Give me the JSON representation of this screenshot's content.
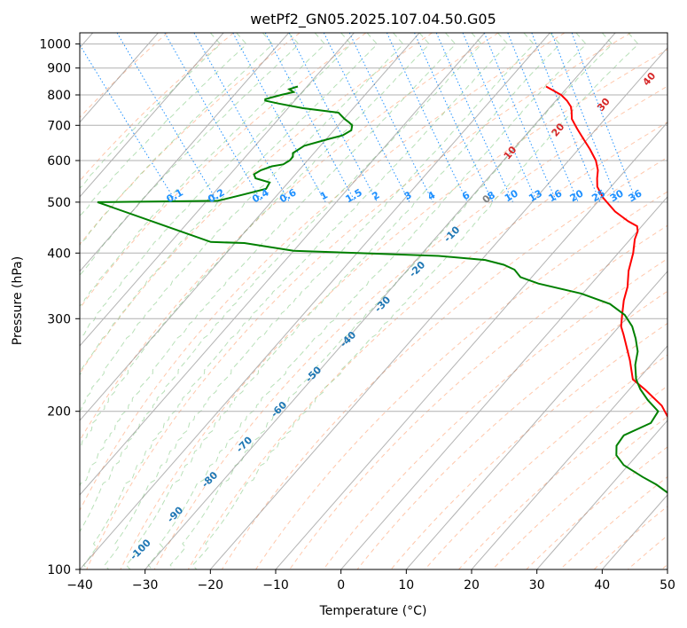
{
  "chart_data": {
    "type": "line",
    "subtype": "skew-t log-p diagram",
    "title": "wetPf2_GN05.2025.107.04.50.G05",
    "xlabel": "Temperature (°C)",
    "ylabel": "Pressure (hPa)",
    "xlim": [
      -40,
      50
    ],
    "ylim": [
      1050,
      100
    ],
    "y_scale": "log",
    "x_ticks": [
      -40,
      -30,
      -20,
      -10,
      0,
      10,
      20,
      30,
      40,
      50
    ],
    "x_tick_labels": [
      "−40",
      "−30",
      "−20",
      "−10",
      "0",
      "10",
      "20",
      "30",
      "40",
      "50"
    ],
    "y_ticks": [
      1000,
      900,
      800,
      700,
      600,
      500,
      400,
      300,
      200,
      100
    ],
    "y_tick_labels": [
      "1000",
      "900",
      "800",
      "700",
      "600",
      "500",
      "400",
      "300",
      "200",
      "100"
    ],
    "grid": true,
    "colors": {
      "temperature": "#ff0000",
      "dewpoint": "#008000",
      "isotherm": "#808080",
      "dry_adiabat": "#ff9966",
      "moist_adiabat": "#88cc88",
      "mixing_ratio": "#1e90ff",
      "isotherm_label": "#1f77b4",
      "moist_label": "#d62728"
    },
    "series": [
      {
        "color": "#ff0000",
        "points": [
          [
            24.2,
            830
          ],
          [
            25.4,
            800
          ],
          [
            25.5,
            780
          ],
          [
            25.3,
            760
          ],
          [
            24.8,
            745
          ],
          [
            23.8,
            720
          ],
          [
            23.3,
            690
          ],
          [
            22.9,
            660
          ],
          [
            22.5,
            630
          ],
          [
            21.9,
            600
          ],
          [
            20.9,
            575
          ],
          [
            19.7,
            555
          ],
          [
            18.6,
            535
          ],
          [
            18,
            510
          ],
          [
            18,
            480
          ],
          [
            18.7,
            460
          ],
          [
            19.4,
            450
          ],
          [
            18.8,
            440
          ],
          [
            17.3,
            425
          ],
          [
            15.2,
            400
          ],
          [
            12.1,
            370
          ],
          [
            9.8,
            345
          ],
          [
            7.4,
            325
          ],
          [
            5.2,
            305
          ],
          [
            3.5,
            290
          ],
          [
            2.8,
            280
          ],
          [
            0.3,
            250
          ],
          [
            -1.8,
            230
          ],
          [
            -1.3,
            220
          ],
          [
            -0.9,
            205
          ],
          [
            -1.5,
            195
          ],
          [
            -2.5,
            185
          ],
          [
            -3.2,
            175
          ],
          [
            -3.5,
            160
          ],
          [
            -4.5,
            150
          ],
          [
            -5.2,
            140
          ],
          [
            -5.3,
            130
          ],
          [
            -5.6,
            120
          ],
          [
            -6.6,
            115
          ],
          [
            -7.5,
            108
          ],
          [
            -7.6,
            104
          ],
          [
            -7.7,
            100
          ]
        ]
      },
      {
        "color": "#008000",
        "points": [
          [
            -13.8,
            830
          ],
          [
            -15.5,
            820
          ],
          [
            -15.2,
            810
          ],
          [
            -17.5,
            800
          ],
          [
            -20.5,
            785
          ],
          [
            -20.7,
            780
          ],
          [
            -19,
            770
          ],
          [
            -16,
            755
          ],
          [
            -11.1,
            740
          ],
          [
            -11,
            720
          ],
          [
            -10.8,
            710
          ],
          [
            -10.7,
            700
          ],
          [
            -11.5,
            685
          ],
          [
            -13.5,
            670
          ],
          [
            -16,
            660
          ],
          [
            -20.8,
            640
          ],
          [
            -23.5,
            620
          ],
          [
            -24,
            610
          ],
          [
            -25,
            600
          ],
          [
            -26.5,
            590
          ],
          [
            -28.5,
            585
          ],
          [
            -30.7,
            575
          ],
          [
            -32.3,
            565
          ],
          [
            -32.6,
            555
          ],
          [
            -31,
            545
          ],
          [
            -32.4,
            530
          ],
          [
            -37.3,
            515
          ],
          [
            -41.4,
            503
          ],
          [
            -60,
            500
          ],
          [
            -48,
            420
          ],
          [
            -43,
            418
          ],
          [
            -36.5,
            404
          ],
          [
            -27,
            400
          ],
          [
            -15,
            395
          ],
          [
            -8.4,
            388
          ],
          [
            -6.2,
            380
          ],
          [
            -5.2,
            372
          ],
          [
            -5.3,
            360
          ],
          [
            -3.4,
            350
          ],
          [
            1.8,
            335
          ],
          [
            4.8,
            320
          ],
          [
            5.6,
            305
          ],
          [
            5.2,
            290
          ],
          [
            4.1,
            275
          ],
          [
            2.7,
            260
          ],
          [
            0.5,
            245
          ],
          [
            -1.3,
            230
          ],
          [
            -2,
            220
          ],
          [
            -2.3,
            210
          ],
          [
            -2.2,
            200
          ],
          [
            -4.9,
            190
          ],
          [
            -10.7,
            180
          ],
          [
            -13.2,
            172
          ],
          [
            -14.5,
            165
          ],
          [
            -14.7,
            158
          ],
          [
            -13.4,
            150
          ],
          [
            -12.3,
            145
          ],
          [
            -11.7,
            140
          ],
          [
            -11.3,
            130
          ],
          [
            -11.2,
            122
          ],
          [
            -10.7,
            118
          ],
          [
            -9.9,
            112
          ],
          [
            -9.2,
            106
          ],
          [
            -8.9,
            100
          ]
        ]
      }
    ],
    "isotherm_labels": [
      "-100",
      "-90",
      "-80",
      "-70",
      "-60",
      "-50",
      "-40",
      "-30",
      "-20",
      "-10",
      "0"
    ],
    "moist_adiabat_labels": [
      "10",
      "20",
      "30",
      "40"
    ],
    "mixing_ratio_labels": [
      "0.1",
      "0.2",
      "0.4",
      "0.6",
      "1",
      "1.5",
      "2",
      "3",
      "4",
      "6",
      "8",
      "10",
      "13",
      "16",
      "20",
      "25",
      "30",
      "36"
    ]
  }
}
